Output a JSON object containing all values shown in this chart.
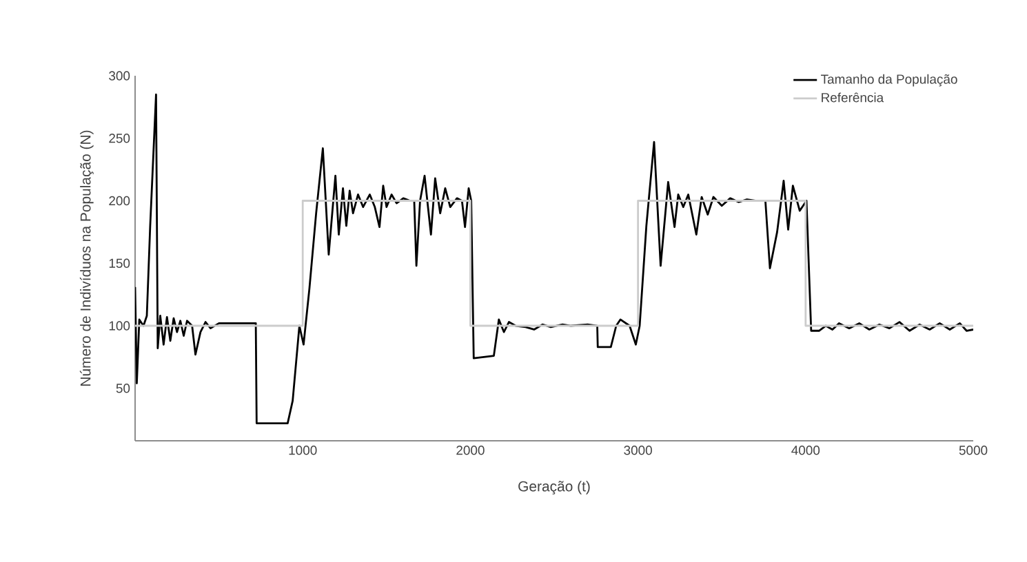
{
  "chart_data": {
    "type": "line",
    "xlabel": "Geração (t)",
    "ylabel": "Número de Indivíduos na População (N)",
    "xlim": [
      0,
      5000
    ],
    "ylim": [
      8,
      300
    ],
    "xticks": [
      1000,
      2000,
      3000,
      4000,
      5000
    ],
    "yticks": [
      50,
      100,
      150,
      200,
      250,
      300
    ],
    "legend": "top right",
    "marker": "none",
    "line_style": "solid",
    "series": [
      {
        "name": "Tamanho da População",
        "color": "#000000",
        "x": [
          0,
          10,
          25,
          50,
          70,
          90,
          125,
          135,
          150,
          170,
          190,
          210,
          230,
          250,
          270,
          290,
          310,
          340,
          360,
          390,
          420,
          450,
          500,
          600,
          720,
          725,
          910,
          940,
          980,
          1005,
          1040,
          1080,
          1120,
          1155,
          1195,
          1215,
          1240,
          1260,
          1280,
          1300,
          1330,
          1360,
          1400,
          1430,
          1458,
          1480,
          1500,
          1530,
          1560,
          1600,
          1640,
          1665,
          1678,
          1700,
          1727,
          1765,
          1790,
          1820,
          1850,
          1880,
          1920,
          1950,
          1968,
          1990,
          2005,
          2020,
          2080,
          2140,
          2170,
          2200,
          2230,
          2270,
          2330,
          2380,
          2430,
          2480,
          2550,
          2600,
          2700,
          2757,
          2760,
          2838,
          2870,
          2895,
          2950,
          2987,
          3010,
          3050,
          3096,
          3135,
          3180,
          3218,
          3240,
          3270,
          3300,
          3348,
          3380,
          3416,
          3450,
          3500,
          3550,
          3600,
          3650,
          3700,
          3760,
          3787,
          3830,
          3869,
          3896,
          3924,
          3965,
          4005,
          4033,
          4080,
          4120,
          4160,
          4200,
          4260,
          4320,
          4380,
          4440,
          4500,
          4560,
          4620,
          4680,
          4740,
          4800,
          4860,
          4920,
          4960,
          5000
        ],
        "values": [
          131,
          54,
          105,
          100,
          108,
          180,
          285,
          82,
          108,
          85,
          107,
          88,
          106,
          95,
          104,
          92,
          104,
          100,
          77,
          95,
          103,
          98,
          102,
          102,
          102,
          22,
          22,
          40,
          100,
          85,
          130,
          190,
          242,
          157,
          220,
          173,
          210,
          180,
          208,
          190,
          205,
          195,
          205,
          195,
          179,
          212,
          195,
          205,
          198,
          202,
          200,
          200,
          148,
          200,
          220,
          173,
          218,
          190,
          210,
          195,
          202,
          200,
          179,
          210,
          200,
          74,
          75,
          76,
          105,
          95,
          103,
          100,
          99,
          97,
          101,
          99,
          101,
          100,
          101,
          100,
          83,
          83,
          100,
          105,
          100,
          85,
          100,
          180,
          247,
          148,
          215,
          179,
          205,
          195,
          205,
          173,
          203,
          189,
          203,
          196,
          202,
          199,
          201,
          200,
          200,
          146,
          175,
          216,
          177,
          212,
          192,
          200,
          96,
          96,
          100,
          97,
          102,
          98,
          102,
          97,
          101,
          98,
          103,
          96,
          101,
          97,
          102,
          97,
          102,
          96,
          97
        ]
      },
      {
        "name": "Referência",
        "color": "#cccccc",
        "type": "step",
        "x": [
          0,
          1000,
          2000,
          3000,
          4000,
          5000
        ],
        "values": [
          100,
          200,
          100,
          200,
          100,
          100
        ]
      }
    ]
  }
}
